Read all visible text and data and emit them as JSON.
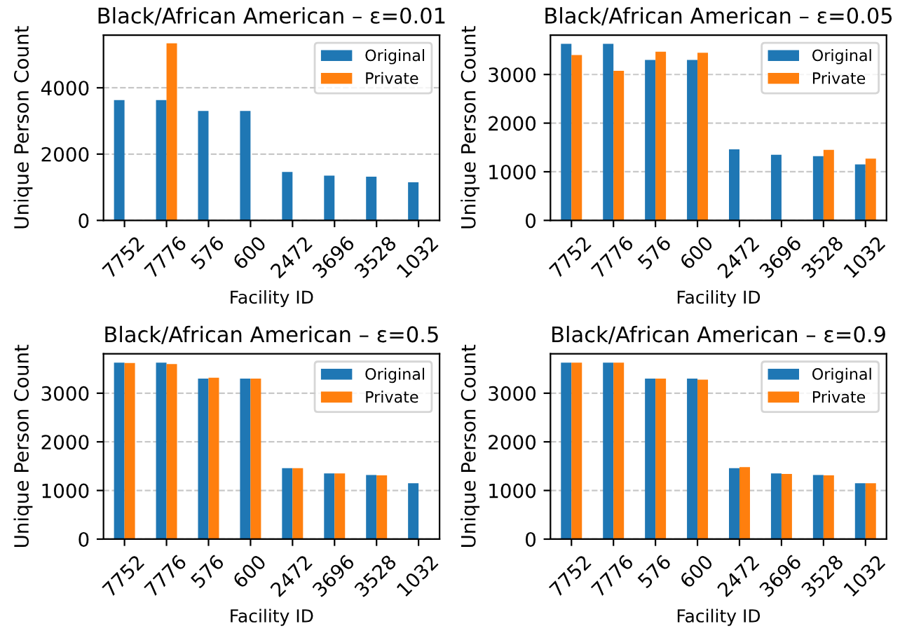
{
  "chart_data": [
    {
      "type": "bar",
      "title": "Black/African American – ε=0.01",
      "xlabel": "Facility ID",
      "ylabel": "Unique Person Count",
      "categories": [
        "7752",
        "7776",
        "576",
        "600",
        "2472",
        "3696",
        "3528",
        "1032"
      ],
      "ylim": [
        0,
        5590
      ],
      "yticks": [
        0,
        2000,
        4000
      ],
      "grid": "y",
      "legend": "top right",
      "series": [
        {
          "name": "Original",
          "color": "#1f77b4",
          "values": [
            3630,
            3630,
            3300,
            3300,
            1460,
            1350,
            1320,
            1150
          ]
        },
        {
          "name": "Private",
          "color": "#ff7f0e",
          "values": [
            null,
            5340,
            null,
            null,
            null,
            null,
            null,
            null
          ]
        }
      ]
    },
    {
      "type": "bar",
      "title": "Black/African American – ε=0.05",
      "xlabel": "Facility ID",
      "ylabel": "Unique Person Count",
      "categories": [
        "7752",
        "7776",
        "576",
        "600",
        "2472",
        "3696",
        "3528",
        "1032"
      ],
      "ylim": [
        0,
        3810
      ],
      "yticks": [
        0,
        1000,
        2000,
        3000
      ],
      "grid": "y",
      "legend": "top right",
      "series": [
        {
          "name": "Original",
          "color": "#1f77b4",
          "values": [
            3630,
            3630,
            3300,
            3300,
            1460,
            1350,
            1320,
            1150
          ]
        },
        {
          "name": "Private",
          "color": "#ff7f0e",
          "values": [
            3400,
            3075,
            3470,
            3445,
            null,
            null,
            1450,
            1270
          ]
        }
      ]
    },
    {
      "type": "bar",
      "title": "Black/African American – ε=0.5",
      "xlabel": "Facility ID",
      "ylabel": "Unique Person Count",
      "categories": [
        "7752",
        "7776",
        "576",
        "600",
        "2472",
        "3696",
        "3528",
        "1032"
      ],
      "ylim": [
        0,
        3810
      ],
      "yticks": [
        0,
        1000,
        2000,
        3000
      ],
      "grid": "y",
      "legend": "top right",
      "series": [
        {
          "name": "Original",
          "color": "#1f77b4",
          "values": [
            3630,
            3630,
            3300,
            3300,
            1460,
            1350,
            1320,
            1150
          ]
        },
        {
          "name": "Private",
          "color": "#ff7f0e",
          "values": [
            3620,
            3600,
            3320,
            3300,
            1460,
            1350,
            1310,
            null
          ]
        }
      ]
    },
    {
      "type": "bar",
      "title": "Black/African American – ε=0.9",
      "xlabel": "Facility ID",
      "ylabel": "Unique Person Count",
      "categories": [
        "7752",
        "7776",
        "576",
        "600",
        "2472",
        "3696",
        "3528",
        "1032"
      ],
      "ylim": [
        0,
        3810
      ],
      "yticks": [
        0,
        1000,
        2000,
        3000
      ],
      "grid": "y",
      "legend": "top right",
      "series": [
        {
          "name": "Original",
          "color": "#1f77b4",
          "values": [
            3630,
            3630,
            3300,
            3300,
            1460,
            1350,
            1320,
            1150
          ]
        },
        {
          "name": "Private",
          "color": "#ff7f0e",
          "values": [
            3630,
            3630,
            3300,
            3280,
            1480,
            1340,
            1310,
            1150
          ]
        }
      ]
    }
  ]
}
